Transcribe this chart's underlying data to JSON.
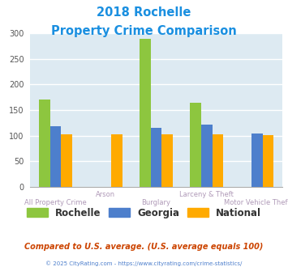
{
  "title_line1": "2018 Rochelle",
  "title_line2": "Property Crime Comparison",
  "categories": [
    "All Property Crime",
    "Arson",
    "Burglary",
    "Larceny & Theft",
    "Motor Vehicle Theft"
  ],
  "rochelle": [
    170,
    0,
    290,
    165,
    0
  ],
  "georgia": [
    118,
    0,
    116,
    121,
    104
  ],
  "national": [
    102,
    103,
    102,
    102,
    101
  ],
  "color_rochelle": "#8dc63f",
  "color_georgia": "#4d7fcc",
  "color_national": "#ffaa00",
  "ylim_max": 300,
  "yticks": [
    0,
    50,
    100,
    150,
    200,
    250,
    300
  ],
  "bg_color": "#ddeaf2",
  "title_color": "#1a8fe0",
  "label_color": "#b09ab8",
  "legend_text_color": "#333333",
  "footer_text": "Compared to U.S. average. (U.S. average equals 100)",
  "footer_color": "#cc4400",
  "copyright_text": "© 2025 CityRating.com - https://www.cityrating.com/crime-statistics/",
  "copyright_color": "#4d7fcc",
  "bar_width": 0.22
}
